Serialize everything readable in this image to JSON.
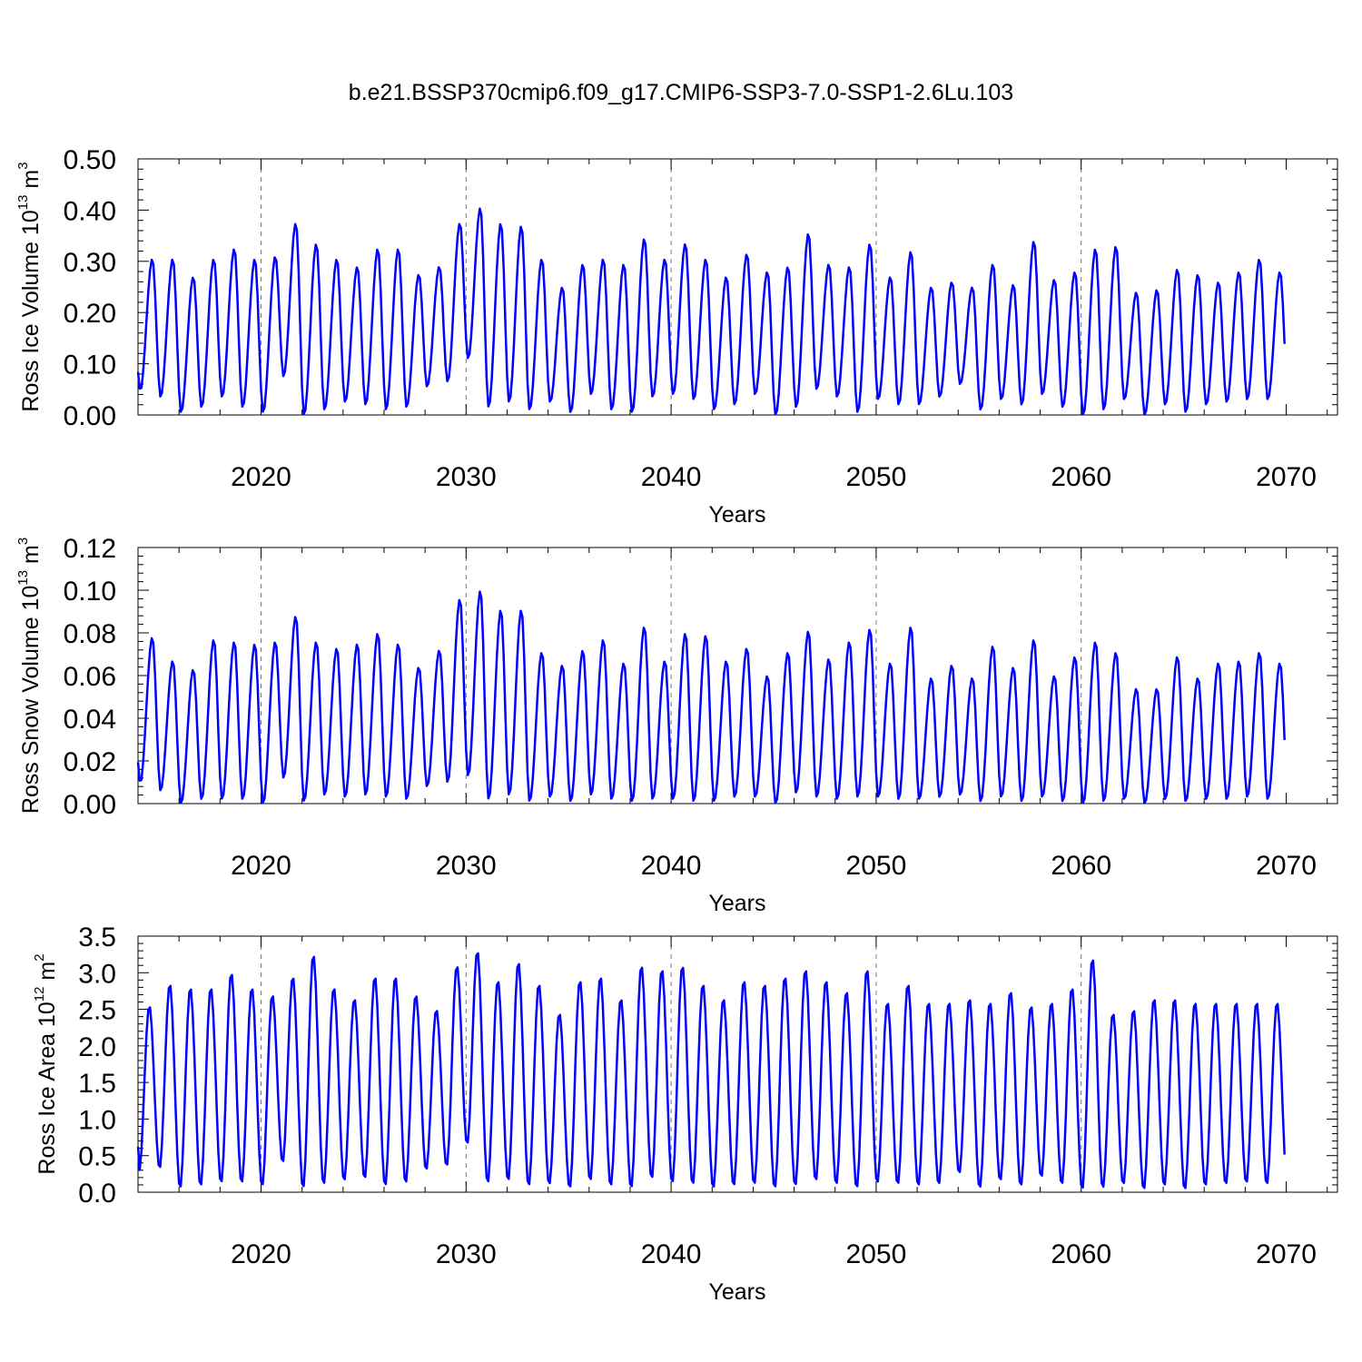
{
  "figure_title": "b.e21.BSSP370cmip6.f09_g17.CMIP6-SSP3-7.0-SSP1-2.6Lu.103",
  "line_color": "#0000ff",
  "chart_data": [
    {
      "type": "line",
      "id": "ice_volume",
      "ylabel": {
        "main": "Ross Ice Volume 10",
        "sup1": "13",
        "mid": " m",
        "sup2": "3"
      },
      "xlabel": "Years",
      "xlim": [
        2014,
        2072.5
      ],
      "ylim": [
        0,
        0.5
      ],
      "x_ticks": [
        2020,
        2030,
        2040,
        2050,
        2060,
        2070
      ],
      "x_tick_labels": [
        "2020",
        "2030",
        "2040",
        "2050",
        "2060",
        "2070"
      ],
      "y_ticks": [
        0,
        0.1,
        0.2,
        0.3,
        0.4,
        0.5
      ],
      "y_tick_labels": [
        "0.00",
        "0.10",
        "0.20",
        "0.30",
        "0.40",
        "0.50"
      ],
      "grid_years": [
        2020,
        2030,
        2040,
        2050,
        2060
      ],
      "series": [
        {
          "name": "Ross Ice Volume",
          "x_start": 2014.0,
          "x_step": 1,
          "annual_peak_time": 0.7,
          "annual_min_time": 0.1,
          "annual_min": [
            0.045,
            0.035,
            0.005,
            0.015,
            0.035,
            0.015,
            0.005,
            0.075,
            0.0,
            0.01,
            0.025,
            0.02,
            0.01,
            0.015,
            0.055,
            0.065,
            0.11,
            0.015,
            0.025,
            0.01,
            0.025,
            0.005,
            0.04,
            0.01,
            0.005,
            0.035,
            0.04,
            0.03,
            0.01,
            0.02,
            0.04,
            0.0,
            0.015,
            0.05,
            0.035,
            0.005,
            0.03,
            0.02,
            0.02,
            0.035,
            0.06,
            0.01,
            0.03,
            0.02,
            0.04,
            0.015,
            0.0,
            0.01,
            0.03,
            0.0,
            0.02,
            0.005,
            0.02,
            0.025,
            0.03,
            0.03
          ],
          "annual_peak": [
            0.305,
            0.305,
            0.27,
            0.305,
            0.325,
            0.305,
            0.31,
            0.375,
            0.335,
            0.305,
            0.29,
            0.325,
            0.325,
            0.275,
            0.29,
            0.375,
            0.405,
            0.375,
            0.37,
            0.305,
            0.25,
            0.295,
            0.305,
            0.295,
            0.345,
            0.305,
            0.335,
            0.305,
            0.27,
            0.315,
            0.28,
            0.29,
            0.355,
            0.295,
            0.29,
            0.335,
            0.27,
            0.32,
            0.25,
            0.26,
            0.25,
            0.295,
            0.255,
            0.34,
            0.265,
            0.28,
            0.325,
            0.33,
            0.24,
            0.245,
            0.285,
            0.275,
            0.26,
            0.28,
            0.305,
            0.28
          ]
        }
      ]
    },
    {
      "type": "line",
      "id": "snow_volume",
      "ylabel": {
        "main": "Ross Snow Volume 10",
        "sup1": "13",
        "mid": " m",
        "sup2": "3"
      },
      "xlabel": "Years",
      "xlim": [
        2014,
        2072.5
      ],
      "ylim": [
        0,
        0.12
      ],
      "x_ticks": [
        2020,
        2030,
        2040,
        2050,
        2060,
        2070
      ],
      "x_tick_labels": [
        "2020",
        "2030",
        "2040",
        "2050",
        "2060",
        "2070"
      ],
      "y_ticks": [
        0,
        0.02,
        0.04,
        0.06,
        0.08,
        0.1,
        0.12
      ],
      "y_tick_labels": [
        "0.00",
        "0.02",
        "0.04",
        "0.06",
        "0.08",
        "0.10",
        "0.12"
      ],
      "grid_years": [
        2020,
        2030,
        2040,
        2050,
        2060
      ],
      "series": [
        {
          "name": "Ross Snow Volume",
          "x_start": 2014.0,
          "x_step": 1,
          "annual_peak_time": 0.7,
          "annual_min_time": 0.1,
          "annual_min": [
            0.009,
            0.006,
            0.0,
            0.002,
            0.002,
            0.002,
            0.0,
            0.012,
            0.001,
            0.004,
            0.003,
            0.004,
            0.003,
            0.002,
            0.008,
            0.01,
            0.013,
            0.002,
            0.004,
            0.001,
            0.003,
            0.001,
            0.004,
            0.002,
            0.001,
            0.002,
            0.002,
            0.001,
            0.001,
            0.003,
            0.003,
            0.0,
            0.005,
            0.003,
            0.002,
            0.003,
            0.003,
            0.002,
            0.002,
            0.003,
            0.004,
            0.001,
            0.003,
            0.001,
            0.003,
            0.001,
            0.0,
            0.001,
            0.002,
            0.0,
            0.002,
            0.001,
            0.002,
            0.002,
            0.003,
            0.002
          ],
          "annual_peak": [
            0.078,
            0.067,
            0.063,
            0.077,
            0.076,
            0.075,
            0.076,
            0.088,
            0.076,
            0.073,
            0.075,
            0.08,
            0.075,
            0.064,
            0.072,
            0.096,
            0.1,
            0.091,
            0.091,
            0.071,
            0.065,
            0.072,
            0.077,
            0.066,
            0.083,
            0.067,
            0.08,
            0.079,
            0.067,
            0.073,
            0.06,
            0.071,
            0.081,
            0.068,
            0.076,
            0.082,
            0.066,
            0.083,
            0.059,
            0.065,
            0.059,
            0.074,
            0.064,
            0.077,
            0.06,
            0.069,
            0.076,
            0.071,
            0.054,
            0.054,
            0.069,
            0.059,
            0.066,
            0.067,
            0.071,
            0.066
          ]
        }
      ]
    },
    {
      "type": "line",
      "id": "ice_area",
      "ylabel": {
        "main": "Ross Ice Area 10",
        "sup1": "12",
        "mid": " m",
        "sup2": "2"
      },
      "xlabel": "Years",
      "xlim": [
        2014,
        2072.5
      ],
      "ylim": [
        0,
        3.5
      ],
      "x_ticks": [
        2020,
        2030,
        2040,
        2050,
        2060,
        2070
      ],
      "x_tick_labels": [
        "2020",
        "2030",
        "2040",
        "2050",
        "2060",
        "2070"
      ],
      "y_ticks": [
        0,
        0.5,
        1.0,
        1.5,
        2.0,
        2.5,
        3.0,
        3.5
      ],
      "y_tick_labels": [
        "0.0",
        "0.5",
        "1.0",
        "1.5",
        "2.0",
        "2.5",
        "3.0",
        "3.5"
      ],
      "grid_years": [
        2020,
        2030,
        2040,
        2050,
        2060
      ],
      "series": [
        {
          "name": "Ross Ice Area",
          "x_start": 2014.0,
          "x_step": 1,
          "annual_peak_time": 0.55,
          "annual_min_time": 0.05,
          "annual_min": [
            0.28,
            0.32,
            0.05,
            0.08,
            0.12,
            0.12,
            0.08,
            0.4,
            0.05,
            0.1,
            0.15,
            0.18,
            0.08,
            0.12,
            0.3,
            0.35,
            0.65,
            0.12,
            0.15,
            0.08,
            0.1,
            0.05,
            0.15,
            0.08,
            0.05,
            0.18,
            0.12,
            0.1,
            0.05,
            0.08,
            0.1,
            0.05,
            0.08,
            0.15,
            0.1,
            0.05,
            0.12,
            0.1,
            0.08,
            0.1,
            0.25,
            0.05,
            0.15,
            0.08,
            0.2,
            0.1,
            0.03,
            0.05,
            0.1,
            0.03,
            0.08,
            0.03,
            0.08,
            0.1,
            0.12,
            0.1
          ],
          "annual_peak": [
            2.55,
            2.85,
            2.8,
            2.8,
            3.0,
            2.8,
            2.7,
            2.95,
            3.25,
            2.8,
            2.65,
            2.95,
            2.95,
            2.7,
            2.5,
            3.1,
            3.3,
            2.9,
            3.15,
            2.85,
            2.45,
            2.9,
            2.95,
            2.65,
            3.1,
            3.05,
            3.1,
            2.85,
            2.65,
            2.9,
            2.85,
            2.95,
            3.05,
            2.9,
            2.75,
            3.05,
            2.6,
            2.85,
            2.6,
            2.6,
            2.65,
            2.6,
            2.75,
            2.55,
            2.6,
            2.8,
            3.2,
            2.45,
            2.5,
            2.65,
            2.65,
            2.6,
            2.6,
            2.6,
            2.6,
            2.6
          ]
        }
      ]
    }
  ]
}
